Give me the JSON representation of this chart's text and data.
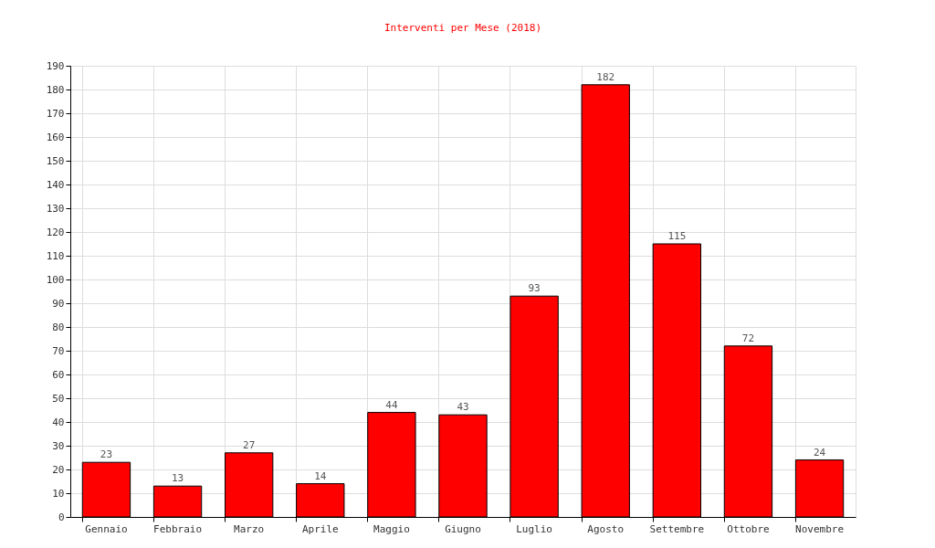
{
  "chart_data": {
    "type": "bar",
    "title": "Interventi per Mese (2018)",
    "categories": [
      "Gennaio",
      "Febbraio",
      "Marzo",
      "Aprile",
      "Maggio",
      "Giugno",
      "Luglio",
      "Agosto",
      "Settembre",
      "Ottobre",
      "Novembre"
    ],
    "values": [
      23,
      13,
      27,
      14,
      44,
      43,
      93,
      182,
      115,
      72,
      24
    ],
    "color": "#ff0000",
    "ylim": [
      0,
      190
    ],
    "yticks": [
      0,
      10,
      20,
      30,
      40,
      50,
      60,
      70,
      80,
      90,
      100,
      110,
      120,
      130,
      140,
      150,
      160,
      170,
      180,
      190
    ],
    "grid": true,
    "data_labels": true
  }
}
